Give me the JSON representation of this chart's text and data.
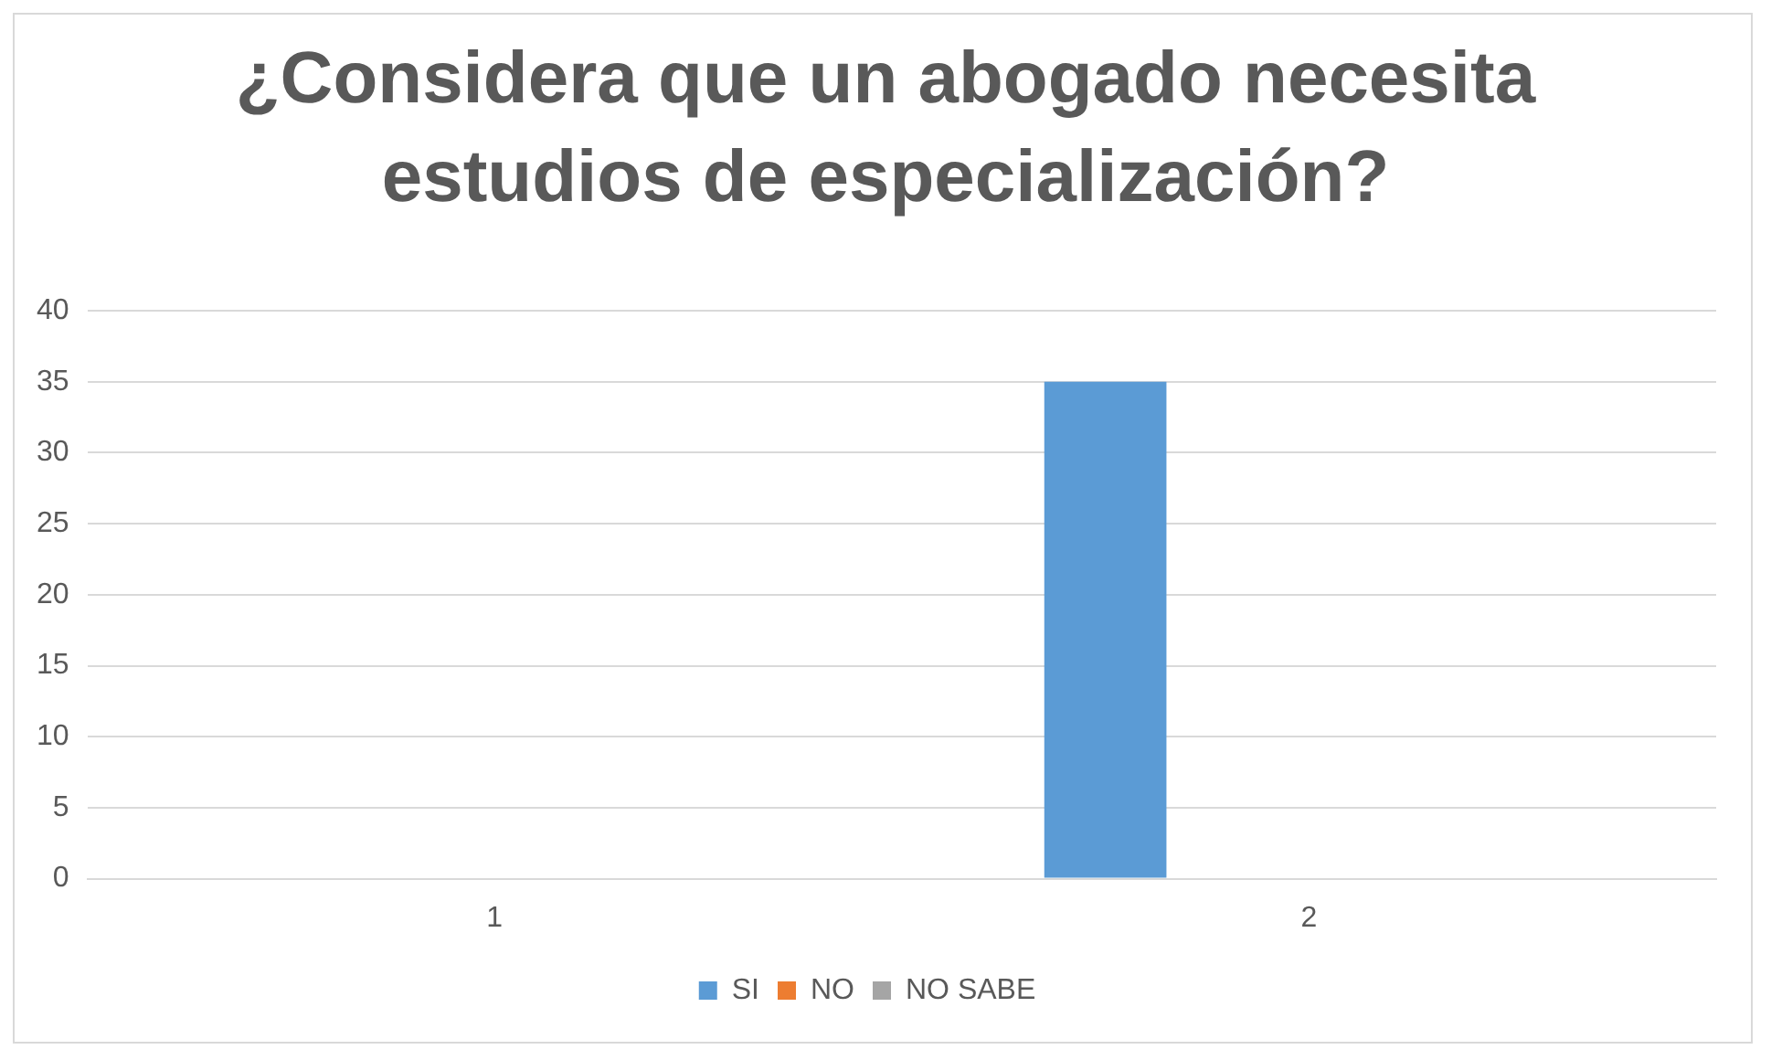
{
  "chart_data": {
    "type": "bar",
    "title": "¿Considera que un abogado necesita estudios de especialización?",
    "categories": [
      "1",
      "2"
    ],
    "series": [
      {
        "name": "SI",
        "color": "#5b9bd5",
        "values": [
          0,
          35
        ]
      },
      {
        "name": "NO",
        "color": "#ed7d31",
        "values": [
          0,
          0
        ]
      },
      {
        "name": "NO SABE",
        "color": "#a5a5a5",
        "values": [
          0,
          0
        ]
      }
    ],
    "ylim": [
      0,
      40
    ],
    "yticks": [
      0,
      5,
      10,
      15,
      20,
      25,
      30,
      35,
      40
    ],
    "grid": "y",
    "legend": "bottom"
  }
}
